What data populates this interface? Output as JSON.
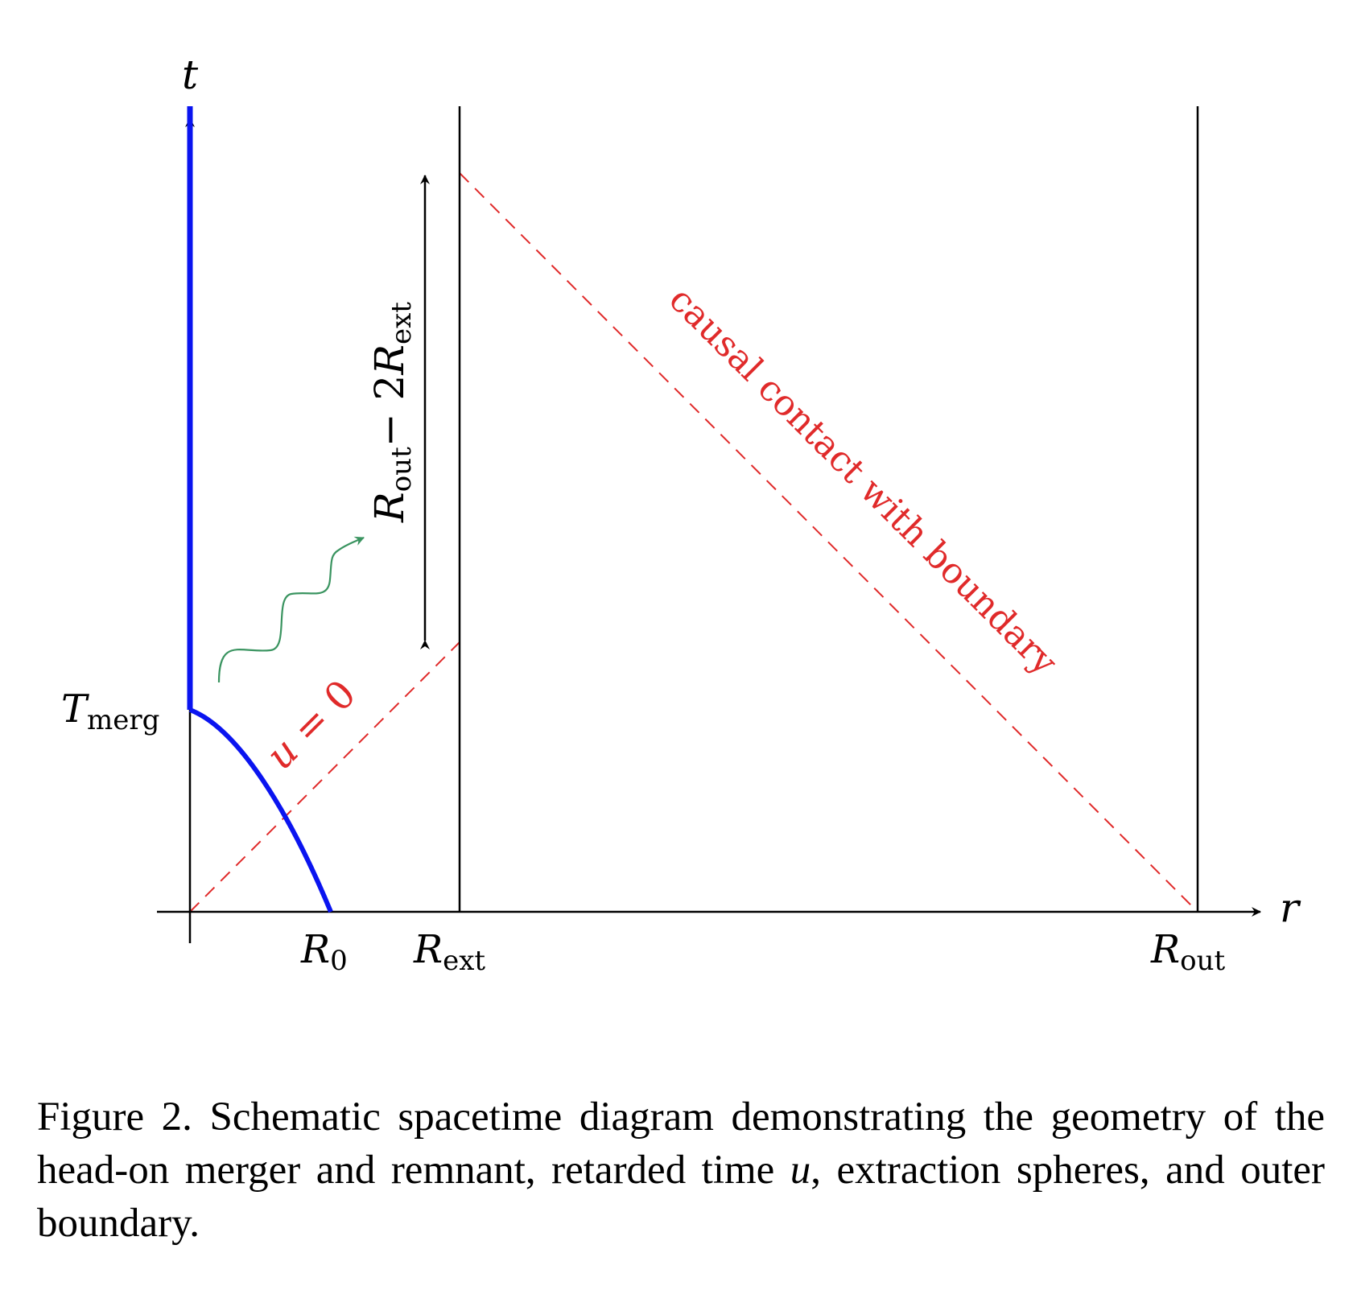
{
  "diagram": {
    "axes": {
      "time_axis": {
        "symbol": "t"
      },
      "radial_axis": {
        "symbol": "r"
      }
    },
    "tick_labels": {
      "r0": {
        "base": "R",
        "subscript": "0"
      },
      "r_ext": {
        "base": "R",
        "subscript": "ext"
      },
      "r_out": {
        "base": "R",
        "subscript": "out"
      },
      "t_merg": {
        "base": "T",
        "subscript": "merg"
      }
    },
    "interval_label": {
      "term1_base": "R",
      "term1_subscript": "out",
      "operator": "− 2",
      "term2_base": "R",
      "term2_subscript": "ext"
    },
    "line_labels": {
      "u_zero": {
        "variable": "u",
        "relation": " = 0"
      },
      "causal_contact": "causal contact with boundary"
    },
    "colors": {
      "worldline": "#0a14f0",
      "null_lines": "#e02a2a",
      "wave": "#3a9460",
      "ink": "#000000"
    },
    "icons": [
      "wavy-arrow-icon",
      "double-headed-arrow-icon"
    ]
  },
  "caption": {
    "label": "Figure 2.",
    "text_before_var": "Schematic spacetime diagram demonstrating the geometry of the head-on merger and remnant, retarded time",
    "variable": "u",
    "text_after_var": ", extraction spheres, and outer boundary."
  }
}
